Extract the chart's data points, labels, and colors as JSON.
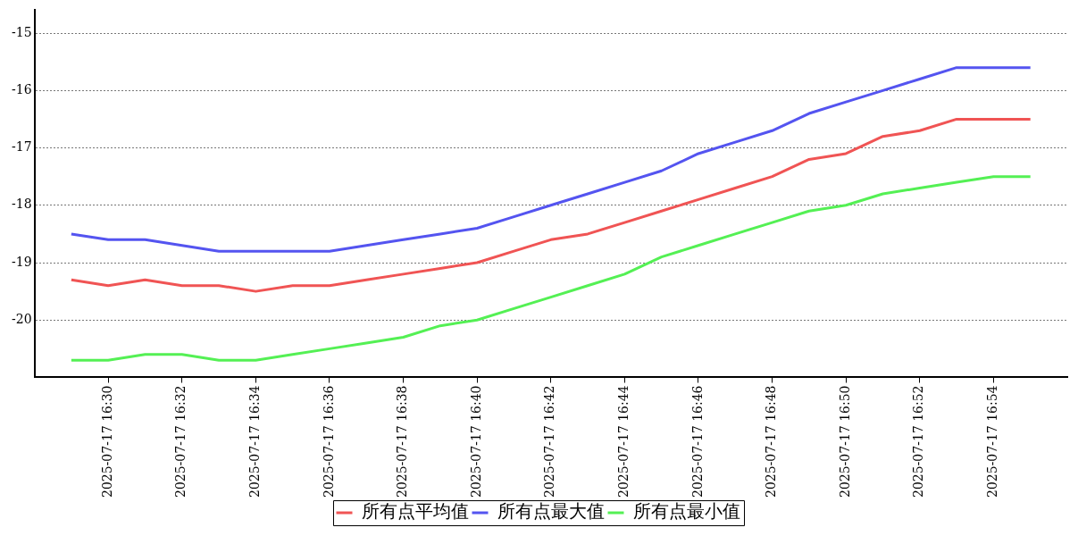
{
  "chart_data": {
    "type": "line",
    "x": [
      "2025-07-17T16:29",
      "2025-07-17T16:30",
      "2025-07-17T16:31",
      "2025-07-17T16:32",
      "2025-07-17T16:33",
      "2025-07-17T16:34",
      "2025-07-17T16:35",
      "2025-07-17T16:36",
      "2025-07-17T16:37",
      "2025-07-17T16:38",
      "2025-07-17T16:39",
      "2025-07-17T16:40",
      "2025-07-17T16:41",
      "2025-07-17T16:42",
      "2025-07-17T16:43",
      "2025-07-17T16:44",
      "2025-07-17T16:45",
      "2025-07-17T16:46",
      "2025-07-17T16:47",
      "2025-07-17T16:48",
      "2025-07-17T16:49",
      "2025-07-17T16:50",
      "2025-07-17T16:51",
      "2025-07-17T16:52",
      "2025-07-17T16:53",
      "2025-07-17T16:54",
      "2025-07-17T16:55"
    ],
    "series": [
      {
        "name": "所有点平均值",
        "color": "#f05454",
        "values": [
          -19.3,
          -19.4,
          -19.3,
          -19.4,
          -19.4,
          -19.5,
          -19.4,
          -19.4,
          -19.3,
          -19.2,
          -19.1,
          -19.0,
          -18.8,
          -18.6,
          -18.5,
          -18.3,
          -18.1,
          -17.9,
          -17.7,
          -17.5,
          -17.2,
          -17.1,
          -16.8,
          -16.7,
          -16.5,
          -16.5,
          -16.5
        ]
      },
      {
        "name": "所有点最大值",
        "color": "#5454f0",
        "values": [
          -18.5,
          -18.6,
          -18.6,
          -18.7,
          -18.8,
          -18.8,
          -18.8,
          -18.8,
          -18.7,
          -18.6,
          -18.5,
          -18.4,
          -18.2,
          -18.0,
          -17.8,
          -17.6,
          -17.4,
          -17.1,
          -16.9,
          -16.7,
          -16.4,
          -16.2,
          -16.0,
          -15.8,
          -15.6,
          -15.6,
          -15.6
        ]
      },
      {
        "name": "所有点最小值",
        "color": "#54f054",
        "values": [
          -20.7,
          -20.7,
          -20.6,
          -20.6,
          -20.7,
          -20.7,
          -20.6,
          -20.5,
          -20.4,
          -20.3,
          -20.1,
          -20.0,
          -19.8,
          -19.6,
          -19.4,
          -19.2,
          -18.9,
          -18.7,
          -18.5,
          -18.3,
          -18.1,
          -18.0,
          -17.8,
          -17.7,
          -17.6,
          -17.5,
          -17.5
        ]
      }
    ],
    "xlim": [
      "2025-07-17T16:28",
      "2025-07-17T16:56"
    ],
    "xticks": [
      {
        "value": "2025-07-17T16:30",
        "label": "2025-07-17 16:30"
      },
      {
        "value": "2025-07-17T16:32",
        "label": "2025-07-17 16:32"
      },
      {
        "value": "2025-07-17T16:34",
        "label": "2025-07-17 16:34"
      },
      {
        "value": "2025-07-17T16:36",
        "label": "2025-07-17 16:36"
      },
      {
        "value": "2025-07-17T16:38",
        "label": "2025-07-17 16:38"
      },
      {
        "value": "2025-07-17T16:40",
        "label": "2025-07-17 16:40"
      },
      {
        "value": "2025-07-17T16:42",
        "label": "2025-07-17 16:42"
      },
      {
        "value": "2025-07-17T16:44",
        "label": "2025-07-17 16:44"
      },
      {
        "value": "2025-07-17T16:46",
        "label": "2025-07-17 16:46"
      },
      {
        "value": "2025-07-17T16:48",
        "label": "2025-07-17 16:48"
      },
      {
        "value": "2025-07-17T16:50",
        "label": "2025-07-17 16:50"
      },
      {
        "value": "2025-07-17T16:52",
        "label": "2025-07-17 16:52"
      },
      {
        "value": "2025-07-17T16:54",
        "label": "2025-07-17 16:54"
      }
    ],
    "ylim": [
      -21,
      -14.6
    ],
    "yticks": [
      -20,
      -19,
      -18,
      -17,
      -16,
      -15
    ],
    "grid": "y",
    "legend": "bottom",
    "marker": "none",
    "line_style": "solid"
  }
}
